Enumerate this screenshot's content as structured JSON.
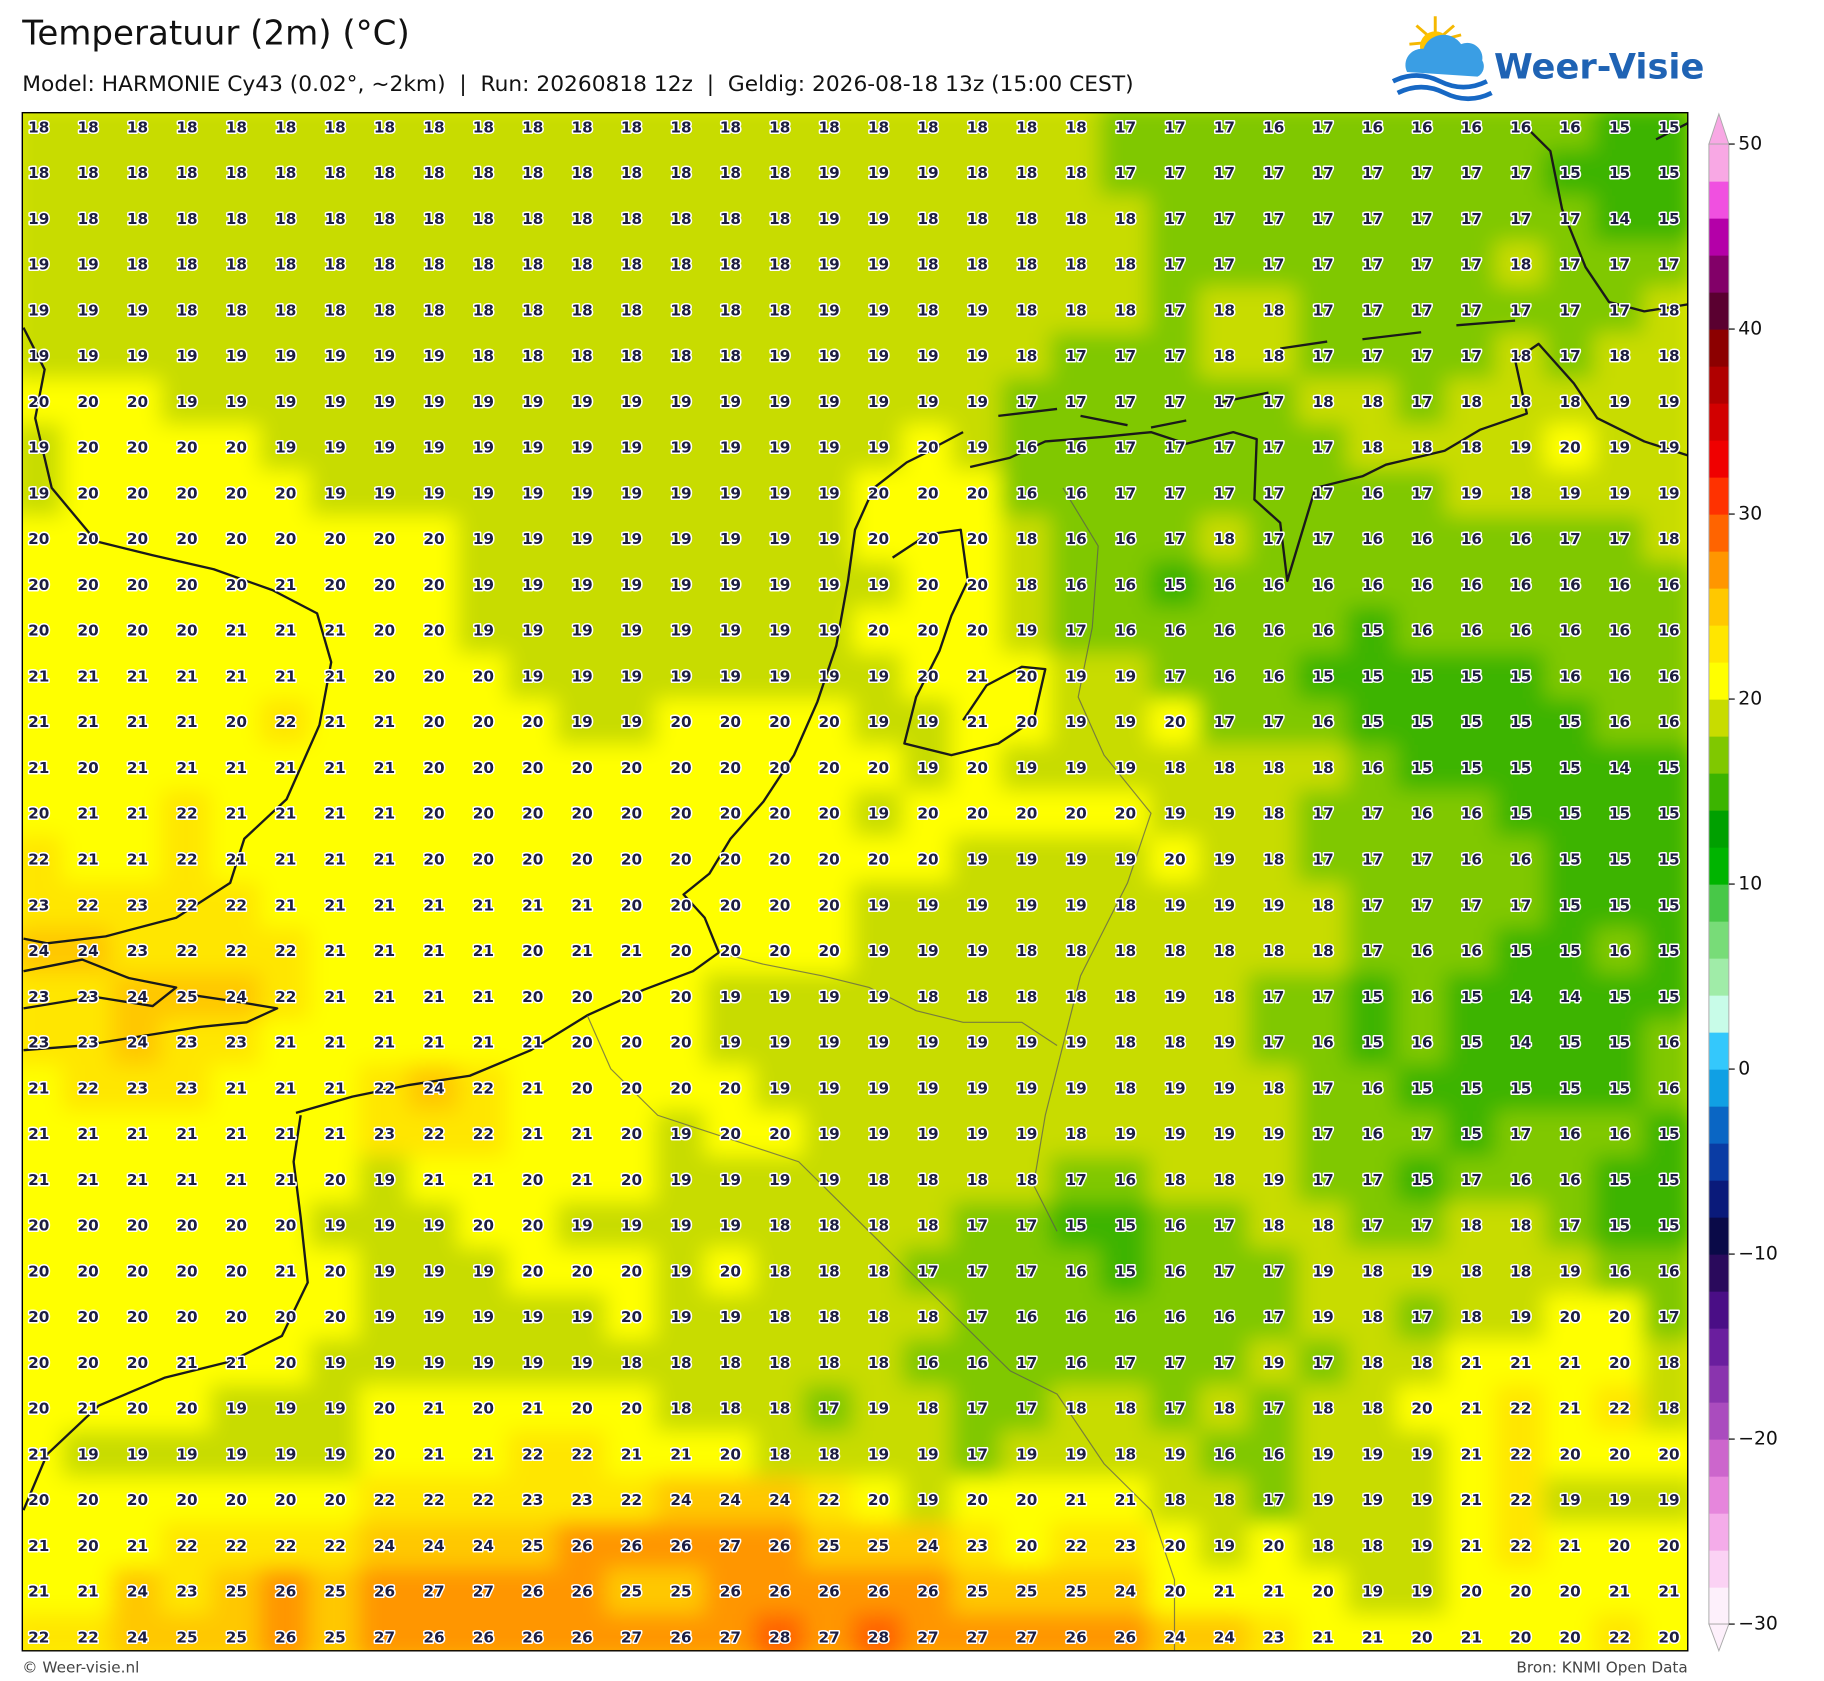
{
  "header": {
    "title": "Temperatuur (2m) (°C)",
    "subtitle": "Model: HARMONIE Cy43 (0.02°, ~2km)  |  Run: 20260818 12z  |  Geldig: 2026-08-18 13z (15:00 CEST)"
  },
  "logo": {
    "text": "Weer-Visie"
  },
  "footer": {
    "left": "© Weer-visie.nl",
    "right": "Bron: KNMI Open Data"
  },
  "colorbar": {
    "lim": [
      -30,
      50
    ],
    "ticks": [
      50,
      40,
      30,
      20,
      10,
      0,
      {
        "value": -10,
        "label": "−10"
      },
      {
        "value": -20,
        "label": "−20"
      },
      {
        "value": -30,
        "label": "−30"
      }
    ],
    "colors": [
      "#fdf0fb",
      "#fbd2f4",
      "#f4ace9",
      "#e686dc",
      "#cc66cc",
      "#aa4cbe",
      "#8a34ae",
      "#6a1e9e",
      "#4a0e86",
      "#2a0a5c",
      "#0a0a48",
      "#0a1a7a",
      "#0a3ca4",
      "#0a66c4",
      "#10a0e4",
      "#34c8fc",
      "#c8fce8",
      "#a0eca8",
      "#78dc78",
      "#48c848",
      "#00b400",
      "#00a000",
      "#3cb400",
      "#80c800",
      "#c8dc00",
      "#ffff00",
      "#ffe600",
      "#ffc800",
      "#ff9600",
      "#ff6400",
      "#ff3200",
      "#f00000",
      "#d20000",
      "#b00000",
      "#8c0000",
      "#5a0030",
      "#820068",
      "#b400a8",
      "#f050e0",
      "#f8a8e4"
    ]
  },
  "grid": {
    "values": [
      [
        18,
        18,
        18,
        18,
        18,
        18,
        18,
        18,
        18,
        18,
        18,
        18,
        18,
        18,
        18,
        18,
        18,
        18,
        18,
        18,
        18,
        18,
        17,
        17,
        17,
        16,
        17,
        16,
        16,
        16,
        16,
        16,
        15,
        15
      ],
      [
        18,
        18,
        18,
        18,
        18,
        18,
        18,
        18,
        18,
        18,
        18,
        18,
        18,
        18,
        18,
        18,
        19,
        19,
        19,
        18,
        18,
        18,
        17,
        17,
        17,
        17,
        17,
        17,
        17,
        17,
        17,
        15,
        15,
        15
      ],
      [
        19,
        18,
        18,
        18,
        18,
        18,
        18,
        18,
        18,
        18,
        18,
        18,
        18,
        18,
        18,
        18,
        19,
        19,
        18,
        18,
        18,
        18,
        18,
        17,
        17,
        17,
        17,
        17,
        17,
        17,
        17,
        17,
        14,
        15
      ],
      [
        19,
        19,
        18,
        18,
        18,
        18,
        18,
        18,
        18,
        18,
        18,
        18,
        18,
        18,
        18,
        18,
        19,
        19,
        18,
        18,
        18,
        18,
        18,
        17,
        17,
        17,
        17,
        17,
        17,
        17,
        18,
        17,
        17,
        17
      ],
      [
        19,
        19,
        19,
        18,
        18,
        18,
        18,
        18,
        18,
        18,
        18,
        18,
        18,
        18,
        18,
        18,
        19,
        19,
        18,
        19,
        18,
        18,
        18,
        17,
        18,
        18,
        17,
        17,
        17,
        17,
        17,
        17,
        17,
        18
      ],
      [
        19,
        19,
        19,
        19,
        19,
        19,
        19,
        19,
        19,
        18,
        18,
        18,
        18,
        18,
        18,
        19,
        19,
        19,
        19,
        19,
        18,
        17,
        17,
        17,
        18,
        18,
        17,
        17,
        17,
        17,
        18,
        17,
        18,
        18
      ],
      [
        20,
        20,
        20,
        19,
        19,
        19,
        19,
        19,
        19,
        19,
        19,
        19,
        19,
        19,
        19,
        19,
        19,
        19,
        19,
        19,
        17,
        17,
        17,
        17,
        17,
        17,
        18,
        18,
        17,
        18,
        18,
        18,
        19,
        19
      ],
      [
        19,
        20,
        20,
        20,
        20,
        19,
        19,
        19,
        19,
        19,
        19,
        19,
        19,
        19,
        19,
        19,
        19,
        19,
        20,
        19,
        16,
        16,
        17,
        17,
        17,
        17,
        17,
        18,
        18,
        18,
        19,
        20,
        19,
        19
      ],
      [
        19,
        20,
        20,
        20,
        20,
        20,
        19,
        19,
        19,
        19,
        19,
        19,
        19,
        19,
        19,
        19,
        19,
        20,
        20,
        20,
        16,
        16,
        17,
        17,
        17,
        17,
        17,
        16,
        17,
        19,
        18,
        19,
        19,
        19
      ],
      [
        20,
        20,
        20,
        20,
        20,
        20,
        20,
        20,
        20,
        19,
        19,
        19,
        19,
        19,
        19,
        19,
        19,
        20,
        20,
        20,
        18,
        16,
        16,
        17,
        18,
        17,
        17,
        16,
        16,
        16,
        16,
        17,
        17,
        18
      ],
      [
        20,
        20,
        20,
        20,
        20,
        21,
        20,
        20,
        20,
        19,
        19,
        19,
        19,
        19,
        19,
        19,
        19,
        19,
        20,
        20,
        18,
        16,
        16,
        15,
        16,
        16,
        16,
        16,
        16,
        16,
        16,
        16,
        16,
        16
      ],
      [
        20,
        20,
        20,
        20,
        21,
        21,
        21,
        20,
        20,
        19,
        19,
        19,
        19,
        19,
        19,
        19,
        19,
        20,
        20,
        20,
        19,
        17,
        16,
        16,
        16,
        16,
        16,
        15,
        16,
        16,
        16,
        16,
        16,
        16
      ],
      [
        21,
        21,
        21,
        21,
        21,
        21,
        21,
        20,
        20,
        20,
        19,
        19,
        19,
        19,
        19,
        19,
        19,
        19,
        20,
        21,
        20,
        19,
        19,
        17,
        16,
        16,
        15,
        15,
        15,
        15,
        15,
        16,
        16,
        16
      ],
      [
        21,
        21,
        21,
        21,
        20,
        22,
        21,
        21,
        20,
        20,
        20,
        19,
        19,
        20,
        20,
        20,
        20,
        19,
        19,
        21,
        20,
        19,
        19,
        20,
        17,
        17,
        16,
        15,
        15,
        15,
        15,
        15,
        16,
        16
      ],
      [
        21,
        20,
        21,
        21,
        21,
        21,
        21,
        21,
        20,
        20,
        20,
        20,
        20,
        20,
        20,
        20,
        20,
        20,
        19,
        20,
        19,
        19,
        19,
        18,
        18,
        18,
        18,
        16,
        15,
        15,
        15,
        15,
        14,
        15
      ],
      [
        20,
        21,
        21,
        22,
        21,
        21,
        21,
        21,
        20,
        20,
        20,
        20,
        20,
        20,
        20,
        20,
        20,
        19,
        20,
        20,
        20,
        20,
        20,
        19,
        19,
        18,
        17,
        17,
        16,
        16,
        15,
        15,
        15,
        15
      ],
      [
        22,
        21,
        21,
        22,
        21,
        21,
        21,
        21,
        20,
        20,
        20,
        20,
        20,
        20,
        20,
        20,
        20,
        20,
        20,
        19,
        19,
        19,
        19,
        20,
        19,
        18,
        17,
        17,
        17,
        16,
        16,
        15,
        15,
        15
      ],
      [
        23,
        22,
        23,
        22,
        22,
        21,
        21,
        21,
        21,
        21,
        21,
        21,
        20,
        20,
        20,
        20,
        20,
        19,
        19,
        19,
        19,
        19,
        18,
        19,
        19,
        19,
        18,
        17,
        17,
        17,
        17,
        15,
        15,
        15
      ],
      [
        24,
        24,
        23,
        22,
        22,
        22,
        21,
        21,
        21,
        21,
        20,
        21,
        21,
        20,
        20,
        20,
        20,
        19,
        19,
        19,
        18,
        18,
        18,
        18,
        18,
        18,
        18,
        17,
        16,
        16,
        15,
        15,
        16,
        15
      ],
      [
        23,
        23,
        24,
        25,
        24,
        22,
        21,
        21,
        21,
        21,
        20,
        20,
        20,
        20,
        19,
        19,
        19,
        19,
        18,
        18,
        18,
        18,
        18,
        19,
        18,
        17,
        17,
        15,
        16,
        15,
        14,
        14,
        15,
        15
      ],
      [
        23,
        23,
        24,
        23,
        23,
        21,
        21,
        21,
        21,
        21,
        21,
        20,
        20,
        20,
        19,
        19,
        19,
        19,
        19,
        19,
        19,
        19,
        18,
        18,
        19,
        17,
        16,
        15,
        16,
        15,
        14,
        15,
        15,
        16
      ],
      [
        21,
        22,
        23,
        23,
        21,
        21,
        21,
        22,
        24,
        22,
        21,
        20,
        20,
        20,
        20,
        19,
        19,
        19,
        19,
        19,
        19,
        19,
        18,
        19,
        19,
        18,
        17,
        16,
        15,
        15,
        15,
        15,
        15,
        16
      ],
      [
        21,
        21,
        21,
        21,
        21,
        21,
        21,
        23,
        22,
        22,
        21,
        21,
        20,
        19,
        20,
        20,
        19,
        19,
        19,
        19,
        19,
        18,
        19,
        19,
        19,
        19,
        17,
        16,
        17,
        15,
        17,
        16,
        16,
        15
      ],
      [
        21,
        21,
        21,
        21,
        21,
        21,
        20,
        19,
        21,
        21,
        20,
        21,
        20,
        19,
        19,
        19,
        19,
        18,
        18,
        18,
        18,
        17,
        16,
        18,
        18,
        19,
        17,
        17,
        15,
        17,
        16,
        16,
        15,
        15
      ],
      [
        20,
        20,
        20,
        20,
        20,
        20,
        19,
        19,
        19,
        20,
        20,
        19,
        19,
        19,
        19,
        18,
        18,
        18,
        18,
        17,
        17,
        15,
        15,
        16,
        17,
        18,
        18,
        17,
        17,
        18,
        18,
        17,
        15,
        15
      ],
      [
        20,
        20,
        20,
        20,
        20,
        21,
        20,
        19,
        19,
        19,
        20,
        20,
        20,
        19,
        20,
        18,
        18,
        18,
        17,
        17,
        17,
        16,
        15,
        16,
        17,
        17,
        19,
        18,
        19,
        18,
        18,
        19,
        16,
        16
      ],
      [
        20,
        20,
        20,
        20,
        20,
        20,
        20,
        19,
        19,
        19,
        19,
        19,
        20,
        19,
        19,
        18,
        18,
        18,
        18,
        17,
        16,
        16,
        16,
        16,
        16,
        17,
        19,
        18,
        17,
        18,
        19,
        20,
        20,
        17
      ],
      [
        20,
        20,
        20,
        21,
        21,
        20,
        19,
        19,
        19,
        19,
        19,
        19,
        18,
        18,
        18,
        18,
        18,
        18,
        16,
        16,
        17,
        16,
        17,
        17,
        17,
        19,
        17,
        18,
        18,
        21,
        21,
        21,
        20,
        18
      ],
      [
        20,
        21,
        20,
        20,
        19,
        19,
        19,
        20,
        21,
        20,
        21,
        20,
        20,
        18,
        18,
        18,
        17,
        19,
        18,
        17,
        17,
        18,
        18,
        17,
        18,
        17,
        18,
        18,
        20,
        21,
        22,
        21,
        22,
        18
      ],
      [
        21,
        19,
        19,
        19,
        19,
        19,
        19,
        20,
        21,
        21,
        22,
        22,
        21,
        21,
        20,
        18,
        18,
        19,
        19,
        17,
        19,
        19,
        18,
        19,
        16,
        16,
        19,
        19,
        19,
        21,
        22,
        20,
        20,
        20
      ],
      [
        20,
        20,
        20,
        20,
        20,
        20,
        20,
        22,
        22,
        22,
        23,
        23,
        22,
        24,
        24,
        24,
        22,
        20,
        19,
        20,
        20,
        21,
        21,
        18,
        18,
        17,
        19,
        19,
        19,
        21,
        22,
        19,
        19,
        19
      ],
      [
        21,
        20,
        21,
        22,
        22,
        22,
        22,
        24,
        24,
        24,
        25,
        26,
        26,
        26,
        27,
        26,
        25,
        25,
        24,
        23,
        20,
        22,
        23,
        20,
        19,
        20,
        18,
        18,
        19,
        21,
        22,
        21,
        20,
        20
      ],
      [
        21,
        21,
        24,
        23,
        25,
        26,
        25,
        26,
        27,
        27,
        26,
        26,
        25,
        25,
        26,
        26,
        26,
        26,
        26,
        25,
        25,
        25,
        24,
        20,
        21,
        21,
        20,
        19,
        19,
        20,
        20,
        20,
        21,
        21
      ],
      [
        22,
        22,
        24,
        25,
        25,
        26,
        25,
        27,
        26,
        26,
        26,
        26,
        27,
        26,
        27,
        28,
        27,
        28,
        27,
        27,
        27,
        26,
        26,
        24,
        24,
        23,
        21,
        21,
        20,
        21,
        20,
        20,
        22,
        20
      ]
    ]
  }
}
